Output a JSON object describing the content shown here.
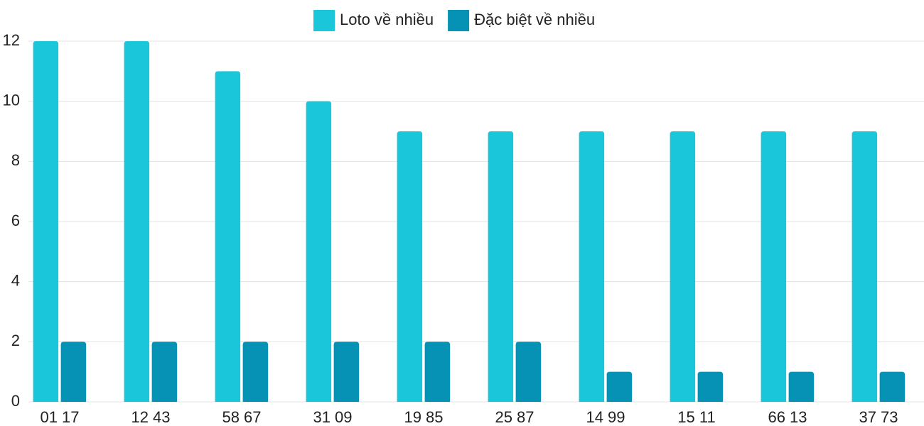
{
  "chart_data": {
    "type": "bar",
    "categories": [
      "01 17",
      "12 43",
      "58 67",
      "31 09",
      "19 85",
      "25 87",
      "14 99",
      "15 11",
      "66 13",
      "37 73"
    ],
    "series": [
      {
        "name": "Loto về nhiều",
        "color": "#1ac6d9",
        "values": [
          12,
          12,
          11,
          10,
          9,
          9,
          9,
          9,
          9,
          9
        ]
      },
      {
        "name": "Đặc biệt về nhiều",
        "color": "#0592b5",
        "values": [
          2,
          2,
          2,
          2,
          2,
          2,
          1,
          1,
          1,
          1
        ]
      }
    ],
    "ylim": [
      0,
      12
    ],
    "yticks": [
      0,
      2,
      4,
      6,
      8,
      10,
      12
    ],
    "grid": true,
    "legend": "top"
  }
}
